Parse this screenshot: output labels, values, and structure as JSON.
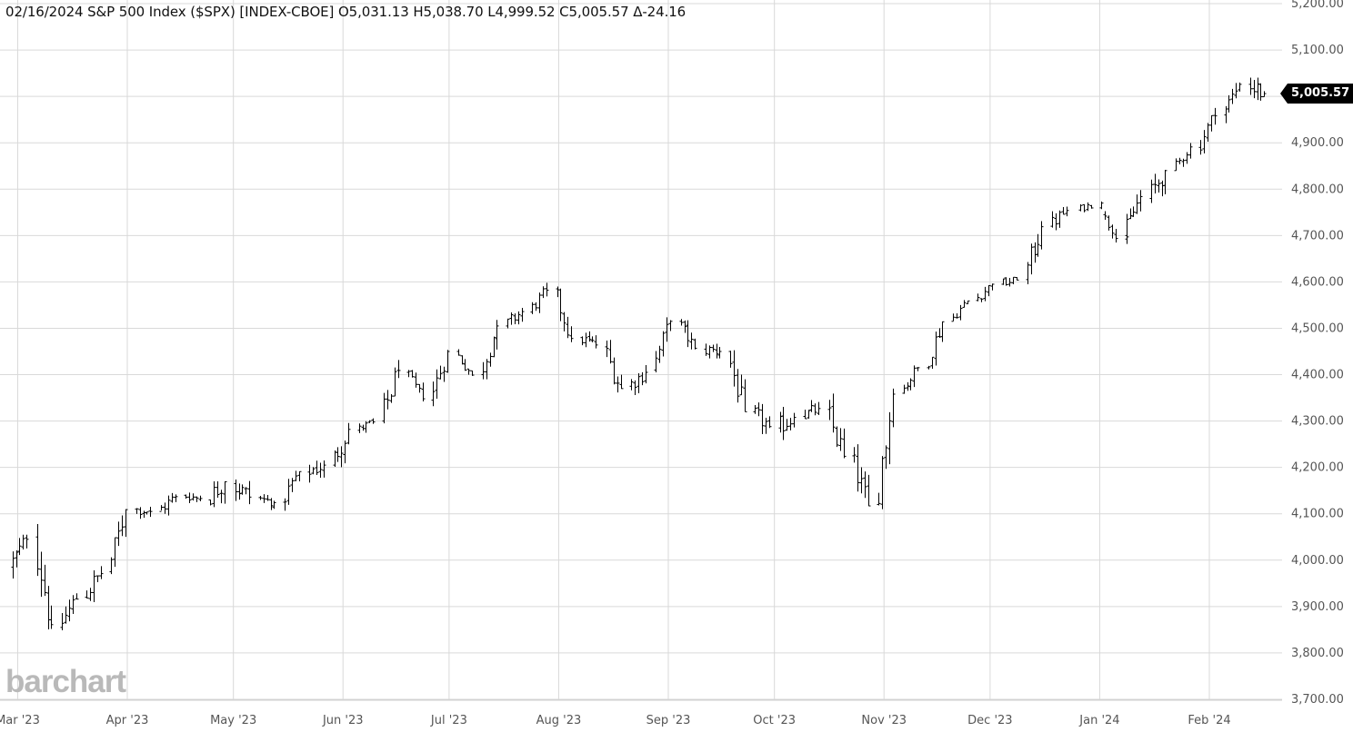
{
  "header": {
    "date": "02/16/2024",
    "symbol": "S&P 500 Index ($SPX) [INDEX-CBOE]",
    "open": "O5,031.13",
    "high": "H5,038.70",
    "low": "L4,999.52",
    "close": "C5,005.57",
    "change": "Δ-24.16"
  },
  "logo": "barchart",
  "last_price_label": "5,005.57",
  "colors": {
    "bars": "#000000",
    "grid": "#d9d9d9",
    "axis_text": "#555555",
    "logo": "#b9b9b9",
    "price_tag_bg": "#000000"
  },
  "chart_data": {
    "type": "ohlc",
    "y_tick_labels": [
      "5,200.00",
      "5,100.00",
      "5,000.00",
      "4,900.00",
      "4,800.00",
      "4,700.00",
      "4,600.00",
      "4,500.00",
      "4,400.00",
      "4,300.00",
      "4,200.00",
      "4,100.00",
      "4,000.00",
      "3,900.00",
      "3,800.00",
      "3,700.00"
    ],
    "x_tick_labels": [
      "Mar '23",
      "Apr '23",
      "May '23",
      "Jun '23",
      "Jul '23",
      "Aug '23",
      "Sep '23",
      "Oct '23",
      "Nov '23",
      "Dec '23",
      "Jan '24",
      "Feb '24"
    ],
    "ylim": [
      3700,
      5200
    ],
    "date_range": [
      "2023-02-27",
      "2024-02-16"
    ],
    "grid": true,
    "last_value": 5005.57,
    "weekly_bars": [
      {
        "start": "2023-02-27",
        "open": 3985,
        "high": 4055,
        "low": 3925,
        "close": 4045
      },
      {
        "start": "2023-03-06",
        "open": 4050,
        "high": 4078,
        "low": 3850,
        "close": 3861
      },
      {
        "start": "2023-03-13",
        "open": 3855,
        "high": 3950,
        "low": 3800,
        "close": 3916
      },
      {
        "start": "2023-03-20",
        "open": 3920,
        "high": 4040,
        "low": 3905,
        "close": 3971
      },
      {
        "start": "2023-03-27",
        "open": 3975,
        "high": 4110,
        "low": 3970,
        "close": 4109
      },
      {
        "start": "2023-04-03",
        "open": 4110,
        "high": 4135,
        "low": 4070,
        "close": 4105
      },
      {
        "start": "2023-04-10",
        "open": 4105,
        "high": 4165,
        "low": 4080,
        "close": 4137
      },
      {
        "start": "2023-04-17",
        "open": 4140,
        "high": 4170,
        "low": 4115,
        "close": 4133
      },
      {
        "start": "2023-04-24",
        "open": 4130,
        "high": 4170,
        "low": 4050,
        "close": 4169
      },
      {
        "start": "2023-05-01",
        "open": 4165,
        "high": 4185,
        "low": 4050,
        "close": 4136
      },
      {
        "start": "2023-05-08",
        "open": 4135,
        "high": 4155,
        "low": 4100,
        "close": 4124
      },
      {
        "start": "2023-05-15",
        "open": 4125,
        "high": 4215,
        "low": 4105,
        "close": 4191
      },
      {
        "start": "2023-05-22",
        "open": 4190,
        "high": 4215,
        "low": 4110,
        "close": 4205
      },
      {
        "start": "2023-05-29",
        "open": 4205,
        "high": 4300,
        "low": 4165,
        "close": 4282
      },
      {
        "start": "2023-06-05",
        "open": 4280,
        "high": 4310,
        "low": 4260,
        "close": 4298
      },
      {
        "start": "2023-06-12",
        "open": 4300,
        "high": 4450,
        "low": 4295,
        "close": 4409
      },
      {
        "start": "2023-06-19",
        "open": 4405,
        "high": 4410,
        "low": 4330,
        "close": 4348
      },
      {
        "start": "2023-06-26",
        "open": 4345,
        "high": 4460,
        "low": 4330,
        "close": 4450
      },
      {
        "start": "2023-07-03",
        "open": 4450,
        "high": 4455,
        "low": 4385,
        "close": 4399
      },
      {
        "start": "2023-07-10",
        "open": 4400,
        "high": 4530,
        "low": 4390,
        "close": 4505
      },
      {
        "start": "2023-07-17",
        "open": 4505,
        "high": 4580,
        "low": 4500,
        "close": 4536
      },
      {
        "start": "2023-07-24",
        "open": 4535,
        "high": 4607,
        "low": 4530,
        "close": 4582
      },
      {
        "start": "2023-07-31",
        "open": 4585,
        "high": 4590,
        "low": 4470,
        "close": 4478
      },
      {
        "start": "2023-08-07",
        "open": 4480,
        "high": 4530,
        "low": 4450,
        "close": 4464
      },
      {
        "start": "2023-08-14",
        "open": 4460,
        "high": 4475,
        "low": 4335,
        "close": 4370
      },
      {
        "start": "2023-08-21",
        "open": 4375,
        "high": 4450,
        "low": 4355,
        "close": 4405
      },
      {
        "start": "2023-08-28",
        "open": 4410,
        "high": 4540,
        "low": 4405,
        "close": 4515
      },
      {
        "start": "2023-09-04",
        "open": 4515,
        "high": 4520,
        "low": 4430,
        "close": 4457
      },
      {
        "start": "2023-09-11",
        "open": 4455,
        "high": 4515,
        "low": 4435,
        "close": 4450
      },
      {
        "start": "2023-09-18",
        "open": 4450,
        "high": 4480,
        "low": 4320,
        "close": 4320
      },
      {
        "start": "2023-09-25",
        "open": 4320,
        "high": 4340,
        "low": 4235,
        "close": 4288
      },
      {
        "start": "2023-10-02",
        "open": 4285,
        "high": 4335,
        "low": 4215,
        "close": 4308
      },
      {
        "start": "2023-10-09",
        "open": 4310,
        "high": 4390,
        "low": 4305,
        "close": 4327
      },
      {
        "start": "2023-10-16",
        "open": 4325,
        "high": 4395,
        "low": 4220,
        "close": 4224
      },
      {
        "start": "2023-10-23",
        "open": 4225,
        "high": 4255,
        "low": 4105,
        "close": 4117
      },
      {
        "start": "2023-10-30",
        "open": 4120,
        "high": 4370,
        "low": 4110,
        "close": 4358
      },
      {
        "start": "2023-11-06",
        "open": 4360,
        "high": 4420,
        "low": 4345,
        "close": 4415
      },
      {
        "start": "2023-11-13",
        "open": 4415,
        "high": 4520,
        "low": 4410,
        "close": 4514
      },
      {
        "start": "2023-11-20",
        "open": 4515,
        "high": 4565,
        "low": 4505,
        "close": 4559
      },
      {
        "start": "2023-11-27",
        "open": 4560,
        "high": 4600,
        "low": 4535,
        "close": 4595
      },
      {
        "start": "2023-12-04",
        "open": 4595,
        "high": 4610,
        "low": 4545,
        "close": 4604
      },
      {
        "start": "2023-12-11",
        "open": 4605,
        "high": 4740,
        "low": 4595,
        "close": 4719
      },
      {
        "start": "2023-12-18",
        "open": 4720,
        "high": 4780,
        "low": 4700,
        "close": 4754
      },
      {
        "start": "2023-12-26",
        "open": 4755,
        "high": 4795,
        "low": 4750,
        "close": 4770
      },
      {
        "start": "2024-01-02",
        "open": 4745,
        "high": 4755,
        "low": 4680,
        "close": 4697
      },
      {
        "start": "2024-01-08",
        "open": 4700,
        "high": 4800,
        "low": 4690,
        "close": 4784
      },
      {
        "start": "2024-01-15",
        "open": 4780,
        "high": 4845,
        "low": 4715,
        "close": 4840
      },
      {
        "start": "2024-01-22",
        "open": 4840,
        "high": 4905,
        "low": 4840,
        "close": 4891
      },
      {
        "start": "2024-01-29",
        "open": 4890,
        "high": 4975,
        "low": 4850,
        "close": 4958
      },
      {
        "start": "2024-02-05",
        "open": 4960,
        "high": 5030,
        "low": 4925,
        "close": 5026
      },
      {
        "start": "2024-02-12",
        "open": 5026,
        "high": 5048,
        "low": 4920,
        "close": 5006
      }
    ]
  }
}
